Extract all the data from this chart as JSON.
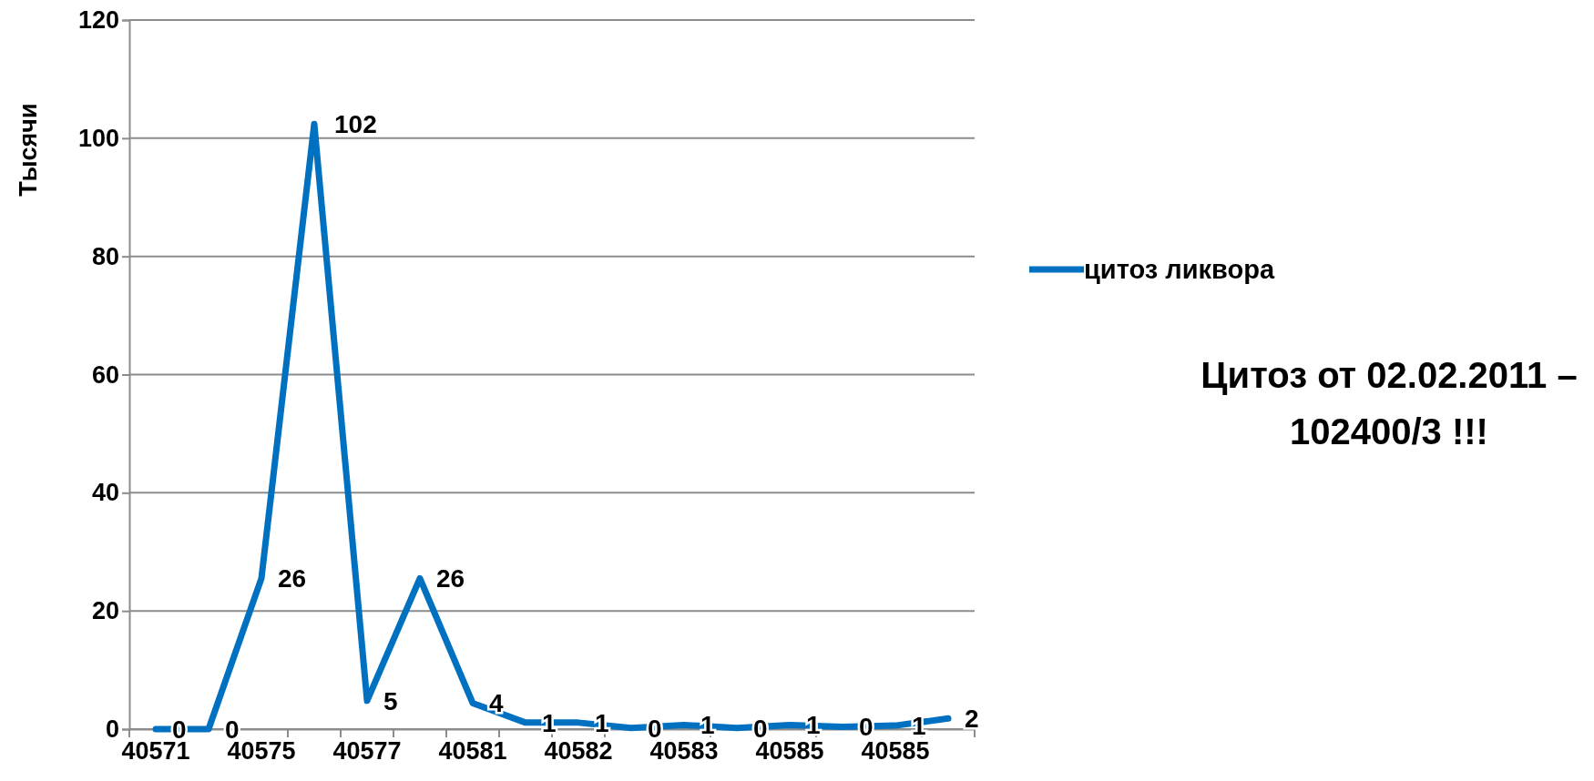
{
  "chart_data": {
    "type": "line",
    "ylabel": "Тысячи",
    "categories": [
      "40571",
      null,
      "40575",
      null,
      "40577",
      null,
      "40581",
      null,
      "40582",
      null,
      "40583",
      null,
      "40585",
      null,
      "40585",
      null
    ],
    "series": [
      {
        "name": "цитоз ликвора",
        "color": "#0070c0",
        "values": [
          0,
          0,
          25.5,
          102.4,
          4.8,
          25.5,
          4.4,
          1.1,
          1.1,
          0.2,
          0.7,
          0.2,
          0.7,
          0.4,
          0.6,
          1.8
        ],
        "value_labels": [
          "0",
          "0",
          "26",
          "102",
          "5",
          "26",
          "4",
          "1",
          "1",
          "0",
          "1",
          "0",
          "1",
          "0",
          "1",
          "2"
        ]
      }
    ],
    "ylim": [
      0,
      120
    ],
    "yticks": [
      0,
      20,
      40,
      60,
      80,
      100,
      120
    ],
    "grid": "y",
    "legend": "right",
    "marker": "none",
    "line_style": "solid",
    "annotations": [
      "Цитоз от 02.02.2011 –\n102400/3 !!!"
    ]
  }
}
